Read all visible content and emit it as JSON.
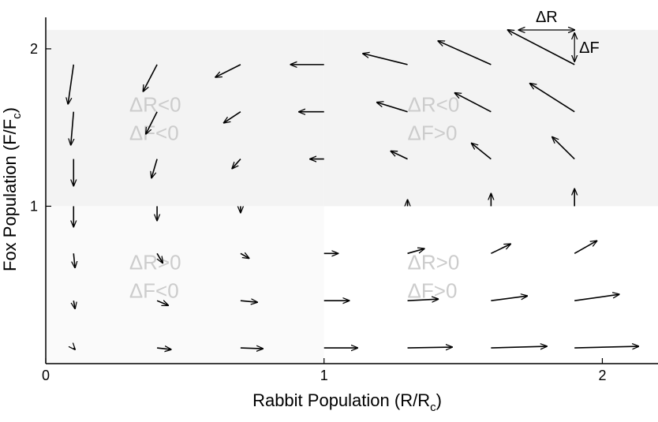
{
  "chart_data": {
    "type": "quiver",
    "xlabel": "Rabbit Population (R/R",
    "xlabel_sub": "c",
    "xlabel_close": ")",
    "ylabel": "Fox Population (F/F",
    "ylabel_sub": "c",
    "ylabel_close": ")",
    "xlim": [
      0,
      2.2
    ],
    "ylim": [
      0,
      2.2
    ],
    "x_ticks": [
      "0",
      "1",
      "2"
    ],
    "y_ticks": [
      "1",
      "2"
    ],
    "shaded_regions": [
      {
        "x": [
          0,
          1
        ],
        "y": [
          1,
          2.12
        ],
        "color": "#f3f3f3"
      },
      {
        "x": [
          1,
          2.2
        ],
        "y": [
          1,
          2.12
        ],
        "color": "#f3f3f3"
      },
      {
        "x": [
          0,
          1
        ],
        "y": [
          0,
          1
        ],
        "color": "#fafafa"
      }
    ],
    "region_labels": [
      {
        "line1": "ΔR<0",
        "line2": "ΔF<0",
        "x": 0.3,
        "y": 1.6
      },
      {
        "line1": "ΔR<0",
        "line2": "ΔF>0",
        "x": 1.3,
        "y": 1.6
      },
      {
        "line1": "ΔR>0",
        "line2": "ΔF<0",
        "x": 0.3,
        "y": 0.6
      },
      {
        "line1": "ΔR>0",
        "line2": "ΔF>0",
        "x": 1.3,
        "y": 0.6
      }
    ],
    "legend": {
      "dR_label": "ΔR",
      "dF_label": "ΔF",
      "x0": 1.9,
      "y0": 1.9,
      "dx": -0.24,
      "dy": 0.22
    },
    "arrows": [
      {
        "x": 0.1,
        "y": 1.9,
        "dx": -0.02,
        "dy": -0.25
      },
      {
        "x": 0.1,
        "y": 1.6,
        "dx": -0.01,
        "dy": -0.21
      },
      {
        "x": 0.1,
        "y": 1.3,
        "dx": 0.0,
        "dy": -0.17
      },
      {
        "x": 0.1,
        "y": 1.0,
        "dx": 0.0,
        "dy": -0.13
      },
      {
        "x": 0.1,
        "y": 0.7,
        "dx": 0.005,
        "dy": -0.09
      },
      {
        "x": 0.1,
        "y": 0.4,
        "dx": 0.005,
        "dy": -0.05
      },
      {
        "x": 0.1,
        "y": 0.1,
        "dx": 0.005,
        "dy": -0.01
      },
      {
        "x": 0.4,
        "y": 1.9,
        "dx": -0.05,
        "dy": -0.17
      },
      {
        "x": 0.4,
        "y": 1.6,
        "dx": -0.04,
        "dy": -0.14
      },
      {
        "x": 0.4,
        "y": 1.3,
        "dx": -0.02,
        "dy": -0.12
      },
      {
        "x": 0.4,
        "y": 1.0,
        "dx": 0.0,
        "dy": -0.09
      },
      {
        "x": 0.4,
        "y": 0.7,
        "dx": 0.02,
        "dy": -0.06
      },
      {
        "x": 0.4,
        "y": 0.4,
        "dx": 0.04,
        "dy": -0.03
      },
      {
        "x": 0.4,
        "y": 0.1,
        "dx": 0.05,
        "dy": -0.01
      },
      {
        "x": 0.7,
        "y": 1.9,
        "dx": -0.09,
        "dy": -0.08
      },
      {
        "x": 0.7,
        "y": 1.6,
        "dx": -0.06,
        "dy": -0.07
      },
      {
        "x": 0.7,
        "y": 1.3,
        "dx": -0.03,
        "dy": -0.06
      },
      {
        "x": 0.7,
        "y": 1.0,
        "dx": 0.0,
        "dy": -0.04
      },
      {
        "x": 0.7,
        "y": 0.7,
        "dx": 0.03,
        "dy": -0.03
      },
      {
        "x": 0.7,
        "y": 0.4,
        "dx": 0.06,
        "dy": -0.01
      },
      {
        "x": 0.7,
        "y": 0.1,
        "dx": 0.08,
        "dy": -0.005
      },
      {
        "x": 1.0,
        "y": 1.9,
        "dx": -0.12,
        "dy": 0.0
      },
      {
        "x": 1.0,
        "y": 1.6,
        "dx": -0.09,
        "dy": 0.0
      },
      {
        "x": 1.0,
        "y": 1.3,
        "dx": -0.05,
        "dy": 0.0
      },
      {
        "x": 1.0,
        "y": 0.7,
        "dx": 0.05,
        "dy": 0.0
      },
      {
        "x": 1.0,
        "y": 0.4,
        "dx": 0.09,
        "dy": 0.0
      },
      {
        "x": 1.0,
        "y": 0.1,
        "dx": 0.12,
        "dy": 0.0
      },
      {
        "x": 1.3,
        "y": 1.9,
        "dx": -0.16,
        "dy": 0.07
      },
      {
        "x": 1.3,
        "y": 1.6,
        "dx": -0.11,
        "dy": 0.06
      },
      {
        "x": 1.3,
        "y": 1.3,
        "dx": -0.06,
        "dy": 0.05
      },
      {
        "x": 1.3,
        "y": 1.0,
        "dx": 0.0,
        "dy": 0.04
      },
      {
        "x": 1.3,
        "y": 0.7,
        "dx": 0.06,
        "dy": 0.03
      },
      {
        "x": 1.3,
        "y": 0.4,
        "dx": 0.11,
        "dy": 0.01
      },
      {
        "x": 1.3,
        "y": 0.1,
        "dx": 0.16,
        "dy": 0.005
      },
      {
        "x": 1.6,
        "y": 1.9,
        "dx": -0.19,
        "dy": 0.15
      },
      {
        "x": 1.6,
        "y": 1.6,
        "dx": -0.13,
        "dy": 0.12
      },
      {
        "x": 1.6,
        "y": 1.3,
        "dx": -0.07,
        "dy": 0.1
      },
      {
        "x": 1.6,
        "y": 1.0,
        "dx": 0.0,
        "dy": 0.08
      },
      {
        "x": 1.6,
        "y": 0.7,
        "dx": 0.07,
        "dy": 0.06
      },
      {
        "x": 1.6,
        "y": 0.4,
        "dx": 0.13,
        "dy": 0.03
      },
      {
        "x": 1.6,
        "y": 0.1,
        "dx": 0.2,
        "dy": 0.01
      },
      {
        "x": 1.9,
        "y": 1.6,
        "dx": -0.16,
        "dy": 0.18
      },
      {
        "x": 1.9,
        "y": 1.3,
        "dx": -0.08,
        "dy": 0.14
      },
      {
        "x": 1.9,
        "y": 1.0,
        "dx": 0.0,
        "dy": 0.11
      },
      {
        "x": 1.9,
        "y": 0.7,
        "dx": 0.08,
        "dy": 0.08
      },
      {
        "x": 1.9,
        "y": 0.4,
        "dx": 0.16,
        "dy": 0.04
      },
      {
        "x": 1.9,
        "y": 0.1,
        "dx": 0.23,
        "dy": 0.01
      }
    ]
  }
}
